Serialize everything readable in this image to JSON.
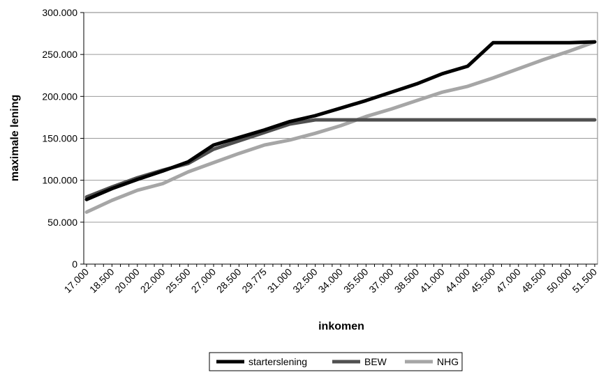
{
  "chart_data": {
    "type": "line",
    "title": "",
    "xlabel": "inkomen",
    "ylabel": "maximale lening",
    "ylim": [
      0,
      300000
    ],
    "yticks": [
      0,
      50000,
      100000,
      150000,
      200000,
      250000,
      300000
    ],
    "ytick_labels": [
      "0",
      "50.000",
      "100.000",
      "150.000",
      "200.000",
      "250.000",
      "300.000"
    ],
    "xtick_labels": [
      "17.000",
      "18.500",
      "20.000",
      "22.000",
      "25.500",
      "27.000",
      "28.500",
      "29.775",
      "31.000",
      "32.500",
      "34.000",
      "35.500",
      "37.000",
      "38.500",
      "41.000",
      "44.000",
      "45.500",
      "47.000",
      "48.500",
      "50.000",
      "51.500"
    ],
    "grid": "horizontal",
    "legend_position": "bottom",
    "colors": {
      "starterslening": "#000000",
      "BEW": "#505050",
      "NHG": "#a6a6a6"
    },
    "x": [
      0,
      3,
      6,
      9,
      12,
      15,
      18,
      21,
      24,
      27,
      30,
      33,
      36,
      39,
      42,
      45,
      48,
      51,
      54,
      57,
      60
    ],
    "series": [
      {
        "name": "starterslening",
        "values": [
          77000,
          90000,
          101000,
          111000,
          122000,
          142000,
          151000,
          160000,
          170000,
          177000,
          186000,
          195000,
          205000,
          215000,
          227000,
          236000,
          264000,
          264000,
          264000,
          264000,
          265000
        ]
      },
      {
        "name": "BEW",
        "values": [
          80000,
          92000,
          103000,
          112000,
          120000,
          137000,
          147000,
          157000,
          167000,
          172000,
          172000,
          172000,
          172000,
          172000,
          172000,
          172000,
          172000,
          172000,
          172000,
          172000,
          172000
        ]
      },
      {
        "name": "NHG",
        "values": [
          62000,
          76000,
          88000,
          96000,
          110000,
          121000,
          132000,
          142000,
          148000,
          156000,
          165000,
          176000,
          185000,
          195000,
          205000,
          212000,
          222000,
          233000,
          244000,
          254000,
          265000
        ]
      }
    ]
  }
}
